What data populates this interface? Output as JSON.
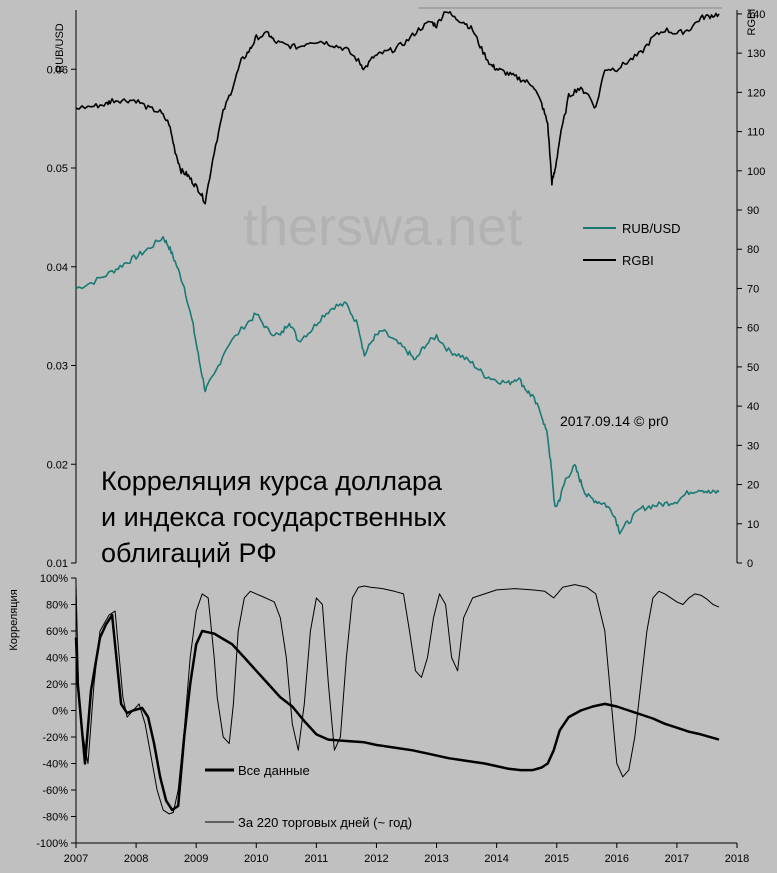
{
  "watermark": "therswa.net",
  "stamp": "2017.09.14 © pr0",
  "title_lines": [
    "Корреляция курса доллара",
    "и индекса государственных",
    "облигаций РФ"
  ],
  "chart_data": [
    {
      "type": "line",
      "ylabel_left": "RUB/USD",
      "ylabel_right": "RGBI",
      "ylim_left": [
        0.01,
        0.066
      ],
      "ylim_right": [
        0,
        141
      ],
      "yticks_left": [
        "0.01",
        "0.02",
        "0.03",
        "0.04",
        "0.05",
        "0.06"
      ],
      "yticks_left_values": [
        0.01,
        0.02,
        0.03,
        0.04,
        0.05,
        0.06
      ],
      "yticks_right": [
        "0",
        "10",
        "20",
        "30",
        "40",
        "50",
        "60",
        "70",
        "80",
        "90",
        "100",
        "110",
        "120",
        "130",
        "140"
      ],
      "yticks_right_values": [
        0,
        10,
        20,
        30,
        40,
        50,
        60,
        70,
        80,
        90,
        100,
        110,
        120,
        130,
        140
      ],
      "xlim": [
        2007,
        2018
      ],
      "reference_line": {
        "y_right": 141.5,
        "x_from": 2012.7,
        "x_to": 2017.75,
        "color": "#888888"
      },
      "legend": [
        {
          "label": "RUB/USD",
          "color": "#1a7a74"
        },
        {
          "label": "RGBI",
          "color": "#000000"
        }
      ],
      "series": [
        {
          "name": "RUB/USD",
          "axis": "left",
          "color": "#1a7a74",
          "x": [
            2007.0,
            2007.3,
            2007.6,
            2007.8,
            2008.0,
            2008.2,
            2008.45,
            2008.55,
            2008.65,
            2008.8,
            2008.95,
            2009.05,
            2009.15,
            2009.3,
            2009.5,
            2009.8,
            2010.0,
            2010.2,
            2010.4,
            2010.55,
            2010.7,
            2010.9,
            2011.1,
            2011.3,
            2011.5,
            2011.7,
            2011.8,
            2011.95,
            2012.1,
            2012.3,
            2012.5,
            2012.65,
            2012.8,
            2013.0,
            2013.2,
            2013.4,
            2013.6,
            2013.8,
            2014.0,
            2014.2,
            2014.35,
            2014.5,
            2014.6,
            2014.75,
            2014.85,
            2014.92,
            2014.97,
            2015.05,
            2015.15,
            2015.3,
            2015.4,
            2015.5,
            2015.65,
            2015.8,
            2015.95,
            2016.05,
            2016.2,
            2016.4,
            2016.6,
            2016.8,
            2017.0,
            2017.2,
            2017.4,
            2017.55,
            2017.7
          ],
          "y": [
            0.0378,
            0.0385,
            0.0395,
            0.0403,
            0.041,
            0.0418,
            0.043,
            0.042,
            0.0405,
            0.038,
            0.034,
            0.0305,
            0.0275,
            0.029,
            0.0318,
            0.034,
            0.0352,
            0.0335,
            0.033,
            0.0345,
            0.0325,
            0.0335,
            0.035,
            0.036,
            0.0362,
            0.034,
            0.031,
            0.0328,
            0.0335,
            0.0325,
            0.0315,
            0.0305,
            0.032,
            0.033,
            0.0315,
            0.031,
            0.0302,
            0.029,
            0.0285,
            0.0282,
            0.0288,
            0.0275,
            0.0268,
            0.025,
            0.0228,
            0.019,
            0.0155,
            0.0165,
            0.0185,
            0.0198,
            0.0182,
            0.0168,
            0.0163,
            0.016,
            0.015,
            0.0132,
            0.0142,
            0.0155,
            0.0158,
            0.016,
            0.0163,
            0.0172,
            0.0175,
            0.0171,
            0.0172
          ]
        },
        {
          "name": "RGBI",
          "axis": "right",
          "color": "#000000",
          "x": [
            2007.0,
            2007.3,
            2007.5,
            2007.6,
            2007.8,
            2008.0,
            2008.2,
            2008.4,
            2008.55,
            2008.65,
            2008.75,
            2008.85,
            2008.95,
            2009.05,
            2009.15,
            2009.3,
            2009.45,
            2009.6,
            2009.75,
            2009.9,
            2010.0,
            2010.2,
            2010.3,
            2010.5,
            2010.7,
            2010.9,
            2011.1,
            2011.3,
            2011.5,
            2011.7,
            2011.8,
            2011.95,
            2012.1,
            2012.3,
            2012.5,
            2012.7,
            2012.9,
            2013.0,
            2013.15,
            2013.3,
            2013.45,
            2013.6,
            2013.75,
            2013.9,
            2014.0,
            2014.15,
            2014.3,
            2014.45,
            2014.6,
            2014.75,
            2014.85,
            2014.92,
            2014.97,
            2015.05,
            2015.2,
            2015.35,
            2015.5,
            2015.65,
            2015.8,
            2016.0,
            2016.2,
            2016.4,
            2016.6,
            2016.8,
            2017.0,
            2017.2,
            2017.4,
            2017.55,
            2017.7
          ],
          "y": [
            116,
            116.5,
            117,
            118,
            118,
            118,
            116,
            115,
            112,
            105,
            100,
            99,
            97,
            95,
            92,
            105,
            115,
            121,
            128,
            131,
            134,
            135,
            133,
            132,
            131.5,
            133,
            133,
            132,
            131,
            128,
            126,
            129,
            130,
            131,
            133,
            136,
            138,
            137,
            141,
            139,
            138,
            136,
            131,
            127,
            126,
            125,
            124,
            123,
            122,
            117,
            112,
            97,
            100,
            108,
            119,
            121,
            120,
            116,
            126,
            126,
            128,
            130,
            134,
            136,
            135,
            136,
            139,
            139.5,
            140
          ]
        }
      ]
    },
    {
      "type": "line",
      "ylabel": "Корреляция",
      "ylim": [
        -100,
        100
      ],
      "yticks": [
        "100%",
        "80%",
        "60%",
        "40%",
        "20%",
        "0%",
        "-20%",
        "-40%",
        "-60%",
        "-80%",
        "-100%"
      ],
      "yticks_values": [
        100,
        80,
        60,
        40,
        20,
        0,
        -20,
        -40,
        -60,
        -80,
        -100
      ],
      "xlim": [
        2007,
        2018
      ],
      "xticks": [
        "2007",
        "2008",
        "2009",
        "2010",
        "2011",
        "2012",
        "2013",
        "2014",
        "2015",
        "2016",
        "2017",
        "2018"
      ],
      "xticks_values": [
        2007,
        2008,
        2009,
        2010,
        2011,
        2012,
        2013,
        2014,
        2015,
        2016,
        2017,
        2018
      ],
      "legend": [
        {
          "label": "Все данные",
          "width": 3
        },
        {
          "label": "За 220 торговых дней (~ год)",
          "width": 1
        }
      ],
      "series": [
        {
          "name": "Все данные",
          "width": 2.5,
          "x": [
            2007.0,
            2007.03,
            2007.08,
            2007.15,
            2007.25,
            2007.4,
            2007.5,
            2007.6,
            2007.75,
            2007.85,
            2007.95,
            2008.1,
            2008.2,
            2008.3,
            2008.4,
            2008.5,
            2008.6,
            2008.7,
            2008.8,
            2008.9,
            2009.0,
            2009.1,
            2009.2,
            2009.3,
            2009.45,
            2009.6,
            2009.8,
            2010.0,
            2010.2,
            2010.4,
            2010.6,
            2010.8,
            2011.0,
            2011.2,
            2011.5,
            2011.8,
            2012.0,
            2012.3,
            2012.6,
            2012.9,
            2013.2,
            2013.5,
            2013.8,
            2014.0,
            2014.2,
            2014.4,
            2014.6,
            2014.75,
            2014.85,
            2014.95,
            2015.05,
            2015.2,
            2015.4,
            2015.6,
            2015.8,
            2016.0,
            2016.2,
            2016.4,
            2016.6,
            2016.8,
            2017.0,
            2017.2,
            2017.4,
            2017.7
          ],
          "y": [
            55,
            20,
            -5,
            -40,
            15,
            55,
            65,
            72,
            5,
            -2,
            0,
            2,
            -5,
            -25,
            -50,
            -68,
            -75,
            -72,
            -20,
            20,
            50,
            60,
            59,
            58,
            54,
            50,
            40,
            30,
            20,
            10,
            3,
            -8,
            -18,
            -22,
            -23,
            -24,
            -26,
            -28,
            -30,
            -33,
            -36,
            -38,
            -40,
            -42,
            -44,
            -45,
            -45,
            -43,
            -40,
            -30,
            -15,
            -5,
            0,
            3,
            5,
            3,
            0,
            -3,
            -6,
            -10,
            -13,
            -16,
            -18,
            -22
          ]
        },
        {
          "name": "За 220 торговых дней (~ год)",
          "width": 1,
          "x": [
            2007.0,
            2007.05,
            2007.12,
            2007.2,
            2007.3,
            2007.4,
            2007.55,
            2007.65,
            2007.78,
            2007.85,
            2007.95,
            2008.05,
            2008.15,
            2008.25,
            2008.35,
            2008.45,
            2008.55,
            2008.62,
            2008.7,
            2008.8,
            2008.9,
            2009.0,
            2009.1,
            2009.2,
            2009.3,
            2009.35,
            2009.45,
            2009.55,
            2009.62,
            2009.7,
            2009.8,
            2009.9,
            2010.0,
            2010.1,
            2010.2,
            2010.3,
            2010.4,
            2010.5,
            2010.6,
            2010.7,
            2010.8,
            2010.9,
            2011.0,
            2011.1,
            2011.2,
            2011.3,
            2011.4,
            2011.5,
            2011.6,
            2011.7,
            2011.8,
            2011.9,
            2012.1,
            2012.3,
            2012.45,
            2012.55,
            2012.65,
            2012.75,
            2012.85,
            2012.95,
            2013.05,
            2013.15,
            2013.25,
            2013.35,
            2013.45,
            2013.6,
            2013.8,
            2014.0,
            2014.3,
            2014.6,
            2014.8,
            2014.95,
            2015.1,
            2015.3,
            2015.5,
            2015.65,
            2015.8,
            2015.9,
            2016.0,
            2016.1,
            2016.2,
            2016.3,
            2016.4,
            2016.5,
            2016.6,
            2016.7,
            2016.8,
            2016.9,
            2017.0,
            2017.1,
            2017.2,
            2017.3,
            2017.4,
            2017.5,
            2017.6,
            2017.7
          ],
          "y": [
            95,
            5,
            -20,
            -40,
            20,
            60,
            72,
            75,
            10,
            -5,
            0,
            5,
            -10,
            -35,
            -60,
            -75,
            -78,
            -77,
            -60,
            -15,
            40,
            75,
            88,
            85,
            40,
            10,
            -20,
            -25,
            5,
            60,
            85,
            90,
            88,
            86,
            84,
            82,
            70,
            40,
            -10,
            -30,
            5,
            60,
            85,
            80,
            20,
            -30,
            -20,
            40,
            85,
            93,
            94,
            93,
            92,
            90,
            88,
            60,
            30,
            25,
            40,
            70,
            88,
            80,
            40,
            30,
            70,
            85,
            88,
            91,
            92,
            91,
            90,
            85,
            93,
            95,
            93,
            88,
            60,
            10,
            -40,
            -50,
            -45,
            -20,
            20,
            60,
            85,
            90,
            88,
            85,
            82,
            80,
            85,
            88,
            87,
            84,
            80,
            78
          ]
        }
      ]
    }
  ]
}
